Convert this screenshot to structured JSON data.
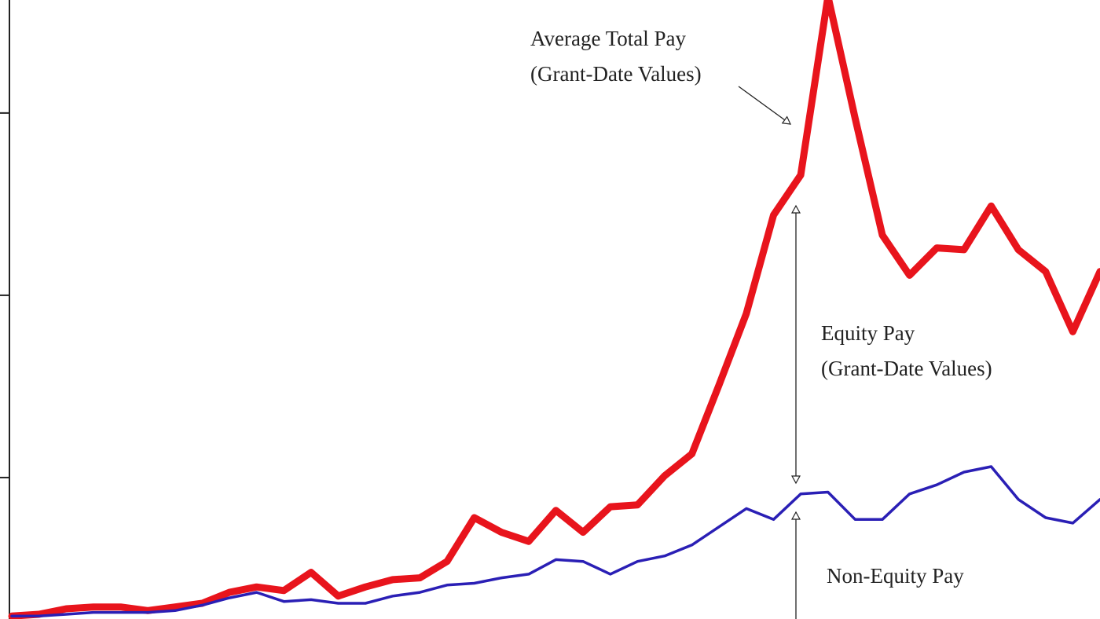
{
  "chart_data": {
    "type": "line",
    "categories": [
      null,
      null,
      null,
      null,
      null,
      null,
      null,
      null,
      null,
      null,
      null,
      null,
      null,
      null,
      null,
      null,
      null,
      null,
      null,
      null,
      null,
      null,
      null,
      null,
      null,
      null,
      null,
      null,
      null,
      null,
      null,
      null,
      null,
      null,
      null,
      null,
      null,
      null,
      null,
      null,
      null
    ],
    "series": [
      {
        "color": "#e8141c",
        "width": 9,
        "values": [
          0.24,
          0.25,
          0.28,
          0.29,
          0.29,
          0.27,
          0.29,
          0.31,
          0.37,
          0.4,
          0.38,
          0.48,
          0.35,
          0.4,
          0.44,
          0.45,
          0.54,
          0.78,
          0.7,
          0.65,
          0.82,
          0.7,
          0.84,
          0.85,
          1.01,
          1.13,
          1.51,
          1.9,
          2.44,
          2.66,
          3.64,
          2.97,
          2.33,
          2.11,
          2.26,
          2.25,
          2.49,
          2.25,
          2.13,
          1.8,
          2.13
        ]
      },
      {
        "color": "#2a1fb5",
        "width": 3.5,
        "values": [
          0.24,
          0.24,
          0.25,
          0.26,
          0.26,
          0.26,
          0.27,
          0.3,
          0.34,
          0.37,
          0.32,
          0.33,
          0.31,
          0.31,
          0.35,
          0.37,
          0.41,
          0.42,
          0.45,
          0.47,
          0.55,
          0.54,
          0.47,
          0.54,
          0.57,
          0.63,
          0.73,
          0.83,
          0.77,
          0.91,
          0.92,
          0.77,
          0.77,
          0.91,
          0.96,
          1.03,
          1.06,
          0.88,
          0.78,
          0.75,
          0.88
        ]
      }
    ],
    "ylim": [
      0.224,
      3.62
    ],
    "yticks": [
      1,
      2,
      3
    ],
    "annotations": [
      {
        "lines": [
          "Average Total Pay",
          "(Grant-Date Values)"
        ]
      },
      {
        "lines": [
          "Equity Pay",
          "(Grant-Date Values)"
        ]
      },
      {
        "lines": [
          "Non-Equity Pay"
        ]
      }
    ]
  }
}
